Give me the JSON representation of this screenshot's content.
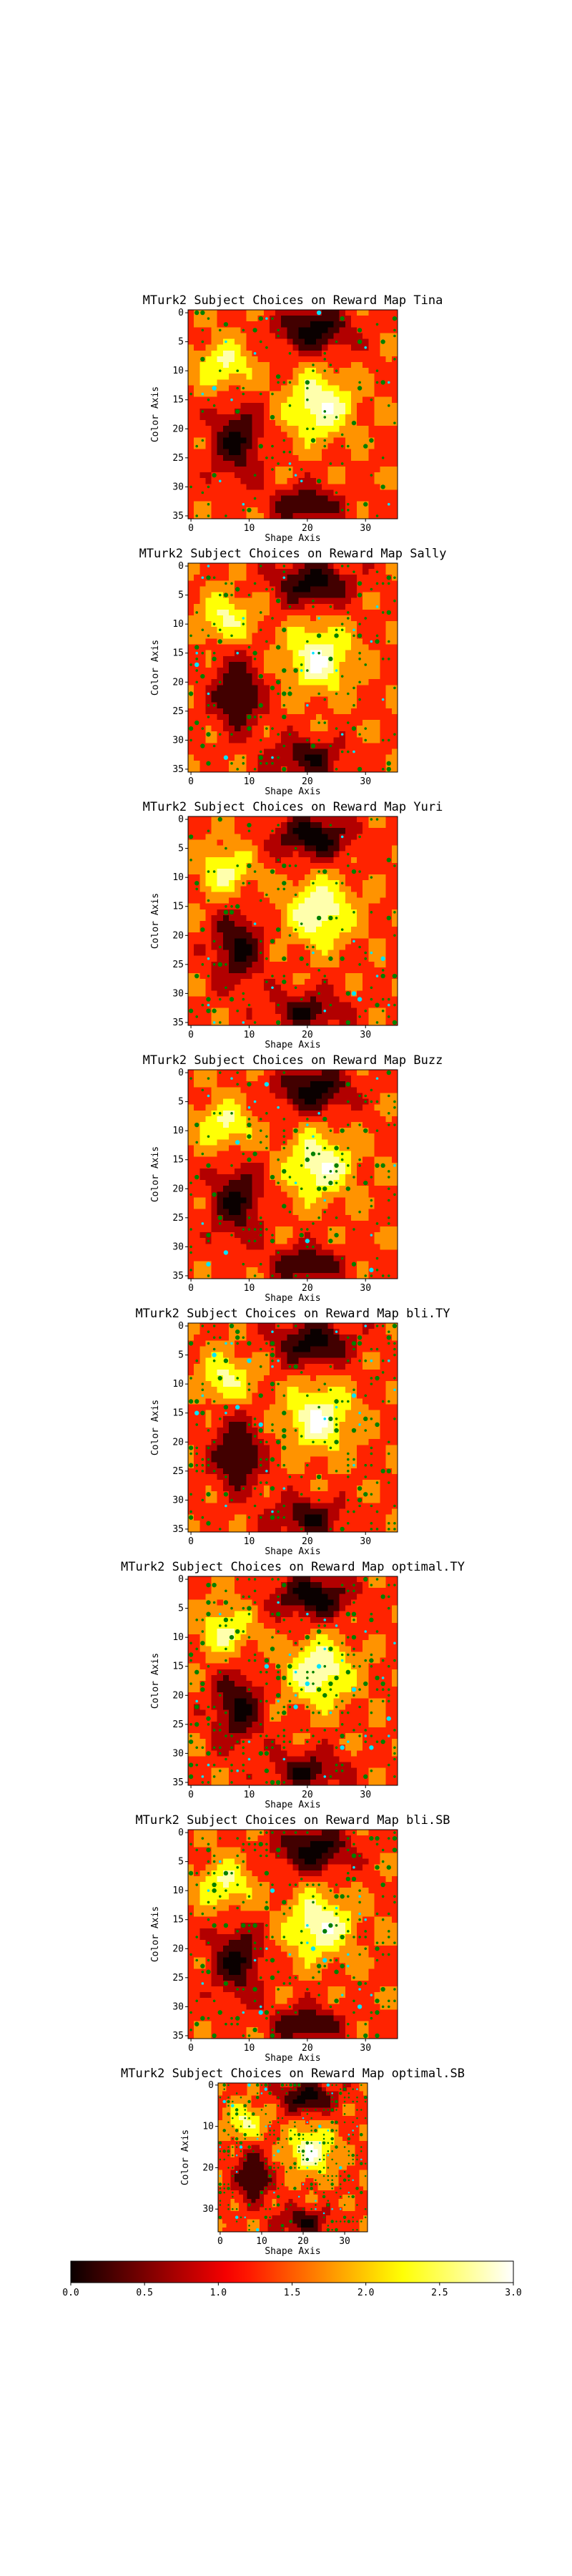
{
  "figure": {
    "colormap": "hot",
    "colorbar": {
      "min": 0.0,
      "max": 3.0,
      "ticks": [
        "0.0",
        "0.5",
        "1.0",
        "1.5",
        "2.0",
        "2.5",
        "3.0"
      ]
    }
  },
  "chart_data": [
    {
      "type": "heatmap",
      "title": "MTurk2 Subject Choices on Reward Map Tina",
      "xlabel": "Shape Axis",
      "ylabel": "Color Axis",
      "xlim": [
        0,
        35
      ],
      "ylim": [
        35,
        0
      ],
      "xticks": [
        "0",
        "10",
        "20",
        "30"
      ],
      "yticks": [
        "0",
        "5",
        "10",
        "15",
        "20",
        "25",
        "30",
        "35"
      ],
      "choice_marker_colors": [
        "#008000",
        "#00e5ff"
      ]
    },
    {
      "type": "heatmap",
      "title": "MTurk2 Subject Choices on Reward Map Sally",
      "xlabel": "Shape Axis",
      "ylabel": "Color Axis",
      "xlim": [
        0,
        35
      ],
      "ylim": [
        35,
        0
      ],
      "xticks": [
        "0",
        "10",
        "20",
        "30"
      ],
      "yticks": [
        "0",
        "5",
        "10",
        "15",
        "20",
        "25",
        "30",
        "35"
      ],
      "choice_marker_colors": [
        "#008000",
        "#00e5ff"
      ]
    },
    {
      "type": "heatmap",
      "title": "MTurk2 Subject Choices on Reward Map Yuri",
      "xlabel": "Shape Axis",
      "ylabel": "Color Axis",
      "xlim": [
        0,
        35
      ],
      "ylim": [
        35,
        0
      ],
      "xticks": [
        "0",
        "10",
        "20",
        "30"
      ],
      "yticks": [
        "0",
        "5",
        "10",
        "15",
        "20",
        "25",
        "30",
        "35"
      ],
      "choice_marker_colors": [
        "#008000",
        "#00e5ff"
      ]
    },
    {
      "type": "heatmap",
      "title": "MTurk2 Subject Choices on Reward Map Buzz",
      "xlabel": "Shape Axis",
      "ylabel": "Color Axis",
      "xlim": [
        0,
        35
      ],
      "ylim": [
        35,
        0
      ],
      "xticks": [
        "0",
        "10",
        "20",
        "30"
      ],
      "yticks": [
        "0",
        "5",
        "10",
        "15",
        "20",
        "25",
        "30",
        "35"
      ],
      "choice_marker_colors": [
        "#008000",
        "#00e5ff"
      ]
    },
    {
      "type": "heatmap",
      "title": "MTurk2 Subject Choices on Reward Map bli.TY",
      "xlabel": "Shape Axis",
      "ylabel": "Color Axis",
      "xlim": [
        0,
        35
      ],
      "ylim": [
        35,
        0
      ],
      "xticks": [
        "0",
        "10",
        "20",
        "30"
      ],
      "yticks": [
        "0",
        "5",
        "10",
        "15",
        "20",
        "25",
        "30",
        "35"
      ],
      "choice_marker_colors": [
        "#008000",
        "#00e5ff"
      ]
    },
    {
      "type": "heatmap",
      "title": "MTurk2 Subject Choices on Reward Map optimal.TY",
      "xlabel": "Shape Axis",
      "ylabel": "Color Axis",
      "xlim": [
        0,
        35
      ],
      "ylim": [
        35,
        0
      ],
      "xticks": [
        "0",
        "10",
        "20",
        "30"
      ],
      "yticks": [
        "0",
        "5",
        "10",
        "15",
        "20",
        "25",
        "30",
        "35"
      ],
      "choice_marker_colors": [
        "#008000",
        "#00e5ff"
      ]
    },
    {
      "type": "heatmap",
      "title": "MTurk2 Subject Choices on Reward Map bli.SB",
      "xlabel": "Shape Axis",
      "ylabel": "Color Axis",
      "xlim": [
        0,
        35
      ],
      "ylim": [
        35,
        0
      ],
      "xticks": [
        "0",
        "10",
        "20",
        "30"
      ],
      "yticks": [
        "0",
        "5",
        "10",
        "15",
        "20",
        "25",
        "30",
        "35"
      ],
      "choice_marker_colors": [
        "#008000",
        "#00e5ff"
      ]
    },
    {
      "type": "heatmap",
      "title": "MTurk2 Subject Choices on Reward Map optimal.SB",
      "xlabel": "Shape Axis",
      "ylabel": "Color Axis",
      "xlim": [
        0,
        35
      ],
      "ylim": [
        35,
        0
      ],
      "xticks": [
        "0",
        "10",
        "20",
        "30"
      ],
      "yticks": [
        "0",
        "10",
        "20",
        "30"
      ],
      "choice_marker_colors": [
        "#008000",
        "#00e5ff"
      ]
    }
  ]
}
